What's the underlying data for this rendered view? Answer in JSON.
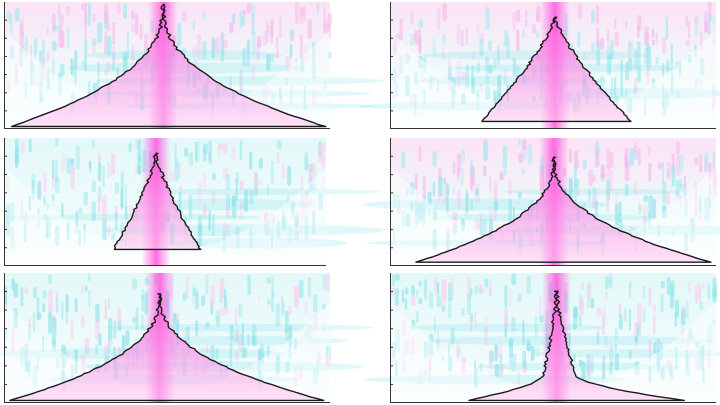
{
  "figure": {
    "background": "#ffffff",
    "colors": {
      "high_power": "#ff55dd",
      "low_power": "#66e6ea",
      "contour": "#1c1c1c",
      "axis": "#333333"
    }
  },
  "chart_data": [
    {
      "type": "heatmap",
      "panel": "top-left",
      "mode": "broad",
      "ridge": [
        0.44,
        0.49,
        0.52
      ],
      "peak_x": 0.488,
      "seed": 11,
      "texture": {
        "top": "pink",
        "bottom": "cyan"
      },
      "contour": {
        "apex": [
          0.488,
          0.02
        ],
        "base_y": 0.98,
        "left": 0.02,
        "right": 0.985
      }
    },
    {
      "type": "heatmap",
      "panel": "top-right",
      "mode": "blob",
      "ridge": [
        0.46,
        0.51,
        0.54
      ],
      "peak_x": 0.506,
      "seed": 23,
      "texture": {
        "top": "pink",
        "bottom": "cyan"
      },
      "contour": {
        "apex": [
          0.506,
          0.12
        ],
        "base_y": 0.94,
        "left": 0.28,
        "right": 0.74
      }
    },
    {
      "type": "heatmap",
      "panel": "middle-left",
      "mode": "blob",
      "ridge": [
        0.44,
        0.48,
        0.51
      ],
      "peak_x": 0.472,
      "seed": 37,
      "texture": {
        "top": "cyan",
        "bottom": "cyan"
      },
      "contour": {
        "apex": [
          0.472,
          0.12
        ],
        "base_y": 0.87,
        "left": 0.34,
        "right": 0.61
      }
    },
    {
      "type": "heatmap",
      "panel": "middle-right",
      "mode": "broad",
      "ridge": [
        0.46,
        0.5,
        0.53
      ],
      "peak_x": 0.503,
      "seed": 41,
      "texture": {
        "top": "pink",
        "bottom": "cyan"
      },
      "contour": {
        "apex": [
          0.503,
          0.15
        ],
        "base_y": 0.97,
        "left": 0.08,
        "right": 0.985
      }
    },
    {
      "type": "heatmap",
      "panel": "bottom-left",
      "mode": "broad",
      "ridge": [
        0.44,
        0.48,
        0.51
      ],
      "peak_x": 0.478,
      "seed": 53,
      "texture": {
        "top": "cyan",
        "bottom": "cyan"
      },
      "contour": {
        "apex": [
          0.478,
          0.16
        ],
        "base_y": 0.98,
        "left": 0.02,
        "right": 0.98
      }
    },
    {
      "type": "heatmap",
      "panel": "bottom-right",
      "mode": "bimodal",
      "ridge": [
        0.46,
        0.51,
        0.54
      ],
      "peak_x": 0.511,
      "seed": 67,
      "texture": {
        "top": "cyan",
        "bottom": "cyan"
      },
      "contour": {
        "apex": [
          0.511,
          0.14
        ],
        "base_y": 0.98,
        "left": 0.24,
        "right": 0.9
      }
    }
  ]
}
